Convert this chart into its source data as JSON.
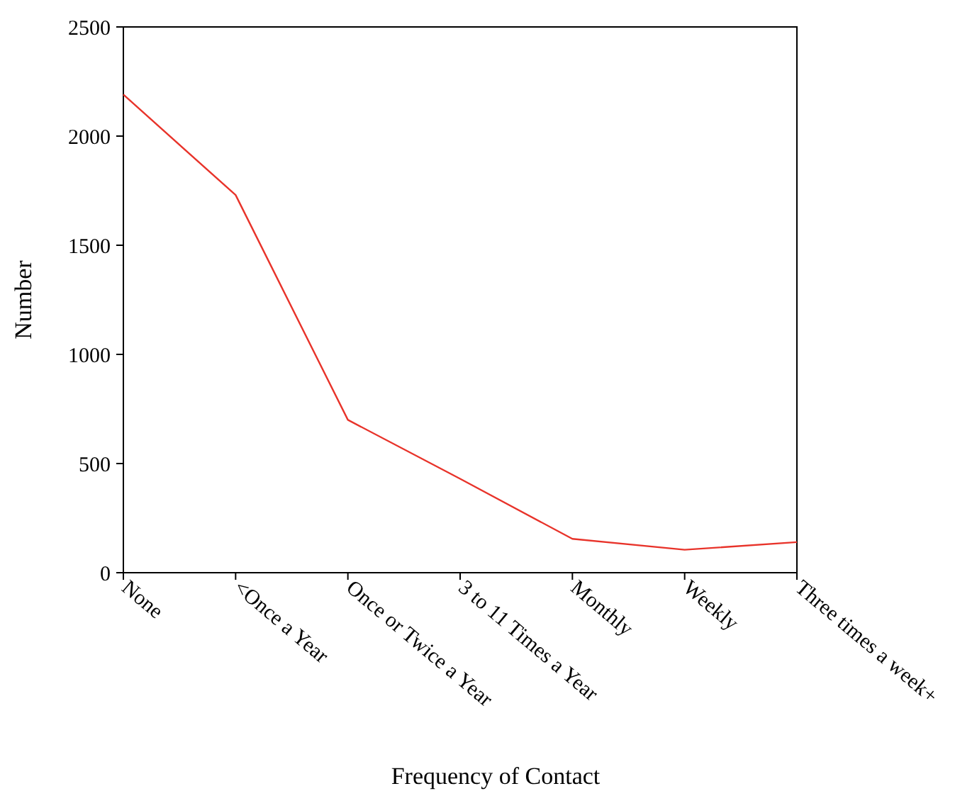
{
  "chart_data": {
    "type": "line",
    "xlabel": "Frequency of Contact",
    "ylabel": "Number",
    "categories": [
      "None",
      "<Once a Year",
      "Once or Twice a Year",
      "3 to 11 Times a Year",
      "Monthly",
      "Weekly",
      "Three times a week+"
    ],
    "series": [
      {
        "color": "#e8332a",
        "values": [
          2190,
          1730,
          700,
          430,
          155,
          105,
          140
        ]
      }
    ],
    "ylim": [
      0,
      2500
    ],
    "yticks": [
      0,
      500,
      1000,
      1500,
      2000,
      2500
    ],
    "grid": false,
    "marker": "none",
    "line_style": "solid"
  }
}
